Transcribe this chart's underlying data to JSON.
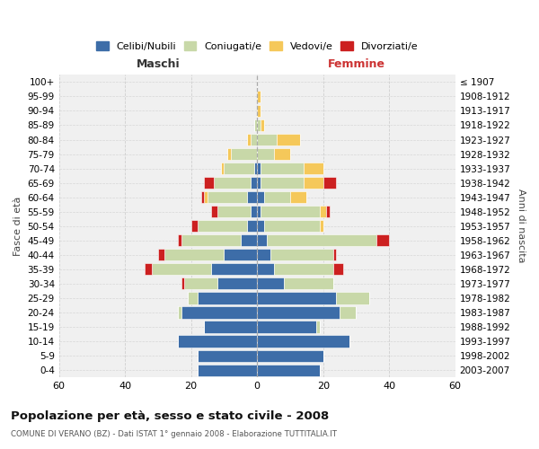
{
  "age_groups": [
    "0-4",
    "5-9",
    "10-14",
    "15-19",
    "20-24",
    "25-29",
    "30-34",
    "35-39",
    "40-44",
    "45-49",
    "50-54",
    "55-59",
    "60-64",
    "65-69",
    "70-74",
    "75-79",
    "80-84",
    "85-89",
    "90-94",
    "95-99",
    "100+"
  ],
  "birth_years": [
    "2003-2007",
    "1998-2002",
    "1993-1997",
    "1988-1992",
    "1983-1987",
    "1978-1982",
    "1973-1977",
    "1968-1972",
    "1963-1967",
    "1958-1962",
    "1953-1957",
    "1948-1952",
    "1943-1947",
    "1938-1942",
    "1933-1937",
    "1928-1932",
    "1923-1927",
    "1918-1922",
    "1913-1917",
    "1908-1912",
    "≤ 1907"
  ],
  "colors": {
    "celibi": "#3d6da8",
    "coniugati": "#c8d8a8",
    "vedovi": "#f5c85a",
    "divorziati": "#cc2020"
  },
  "maschi": {
    "celibi": [
      18,
      18,
      24,
      16,
      23,
      18,
      12,
      14,
      10,
      5,
      3,
      2,
      3,
      2,
      1,
      0,
      0,
      0,
      0,
      0,
      0
    ],
    "coniugati": [
      0,
      0,
      0,
      0,
      1,
      3,
      10,
      18,
      18,
      18,
      15,
      10,
      12,
      11,
      9,
      8,
      2,
      1,
      0,
      0,
      0
    ],
    "vedovi": [
      0,
      0,
      0,
      0,
      0,
      0,
      0,
      0,
      0,
      0,
      0,
      0,
      1,
      0,
      1,
      1,
      1,
      0,
      0,
      0,
      0
    ],
    "divorziati": [
      0,
      0,
      0,
      0,
      0,
      0,
      1,
      2,
      2,
      1,
      2,
      2,
      1,
      3,
      0,
      0,
      0,
      0,
      0,
      0,
      0
    ]
  },
  "femmine": {
    "celibi": [
      19,
      20,
      28,
      18,
      25,
      24,
      8,
      5,
      4,
      3,
      2,
      1,
      2,
      1,
      1,
      0,
      0,
      0,
      0,
      0,
      0
    ],
    "coniugati": [
      0,
      0,
      0,
      1,
      5,
      10,
      15,
      18,
      19,
      33,
      17,
      18,
      8,
      13,
      13,
      5,
      6,
      1,
      0,
      0,
      0
    ],
    "vedovi": [
      0,
      0,
      0,
      0,
      0,
      0,
      0,
      0,
      0,
      0,
      1,
      2,
      5,
      6,
      6,
      5,
      7,
      1,
      1,
      1,
      0
    ],
    "divorziati": [
      0,
      0,
      0,
      0,
      0,
      0,
      0,
      3,
      1,
      4,
      0,
      1,
      0,
      4,
      0,
      0,
      0,
      0,
      0,
      0,
      0
    ]
  },
  "xlim": 60,
  "title": "Popolazione per età, sesso e stato civile - 2008",
  "subtitle": "COMUNE DI VERANO (BZ) - Dati ISTAT 1° gennaio 2008 - Elaborazione TUTTITALIA.IT",
  "xlabel_left": "Maschi",
  "xlabel_right": "Femmine",
  "ylabel_left": "Fasce di età",
  "ylabel_right": "Anni di nascita",
  "legend_labels": [
    "Celibi/Nubili",
    "Coniugati/e",
    "Vedovi/e",
    "Divorziati/e"
  ],
  "background_color": "#f0f0f0",
  "grid_color": "#cccccc"
}
